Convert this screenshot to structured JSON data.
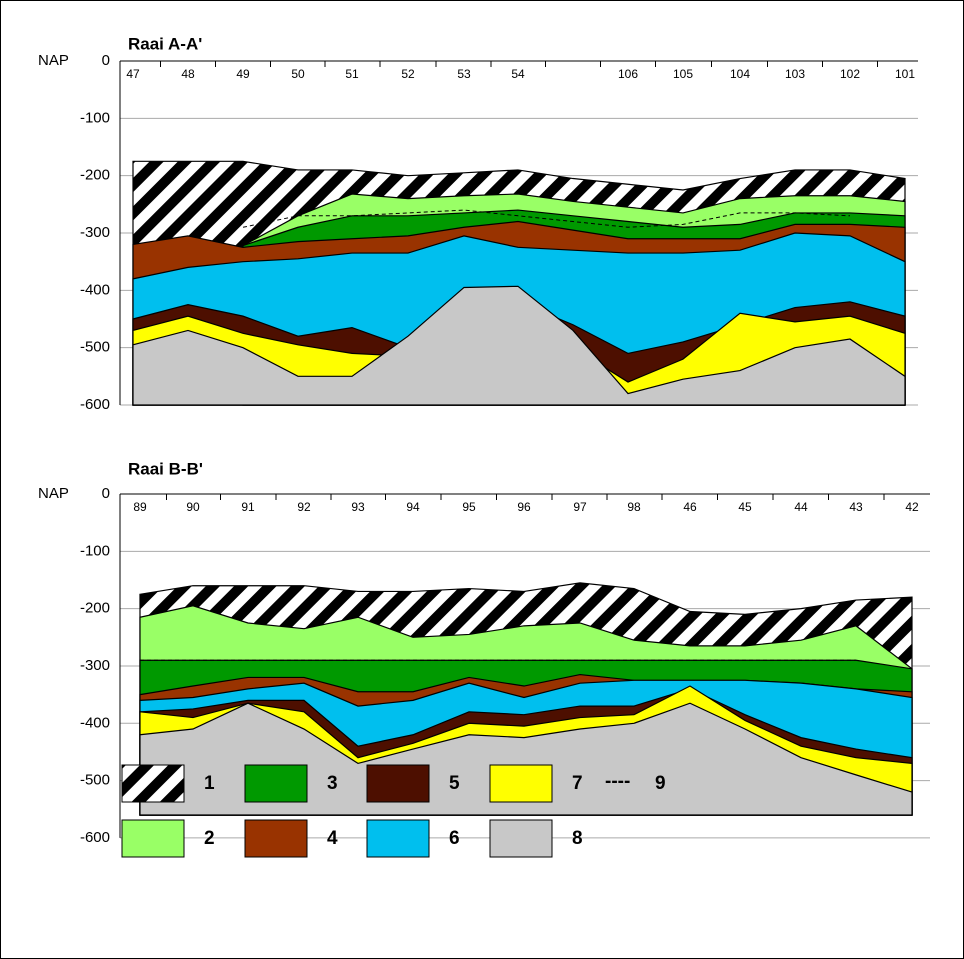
{
  "panels": [
    {
      "title": "Raai A-A'",
      "axis_prefix": "NAP",
      "yticks": [
        "0",
        "-100",
        "-200",
        "-300",
        "-400",
        "-500",
        "-600"
      ],
      "boreholes": [
        "47",
        "48",
        "49",
        "50",
        "51",
        "52",
        "53",
        "54",
        null,
        "106",
        "105",
        "104",
        "103",
        "102",
        "101"
      ]
    },
    {
      "title": "Raai B-B'",
      "axis_prefix": "NAP",
      "yticks": [
        "0",
        "-100",
        "-200",
        "-300",
        "-400",
        "-500",
        "-600"
      ],
      "boreholes": [
        "89",
        "90",
        "91",
        "92",
        "93",
        "94",
        "95",
        "96",
        "97",
        "98",
        "46",
        "45",
        "44",
        "43",
        "42"
      ]
    }
  ],
  "legend": [
    "1",
    "2",
    "3",
    "4",
    "5",
    "6",
    "7",
    "8",
    "9"
  ],
  "legend_dash": "----"
}
